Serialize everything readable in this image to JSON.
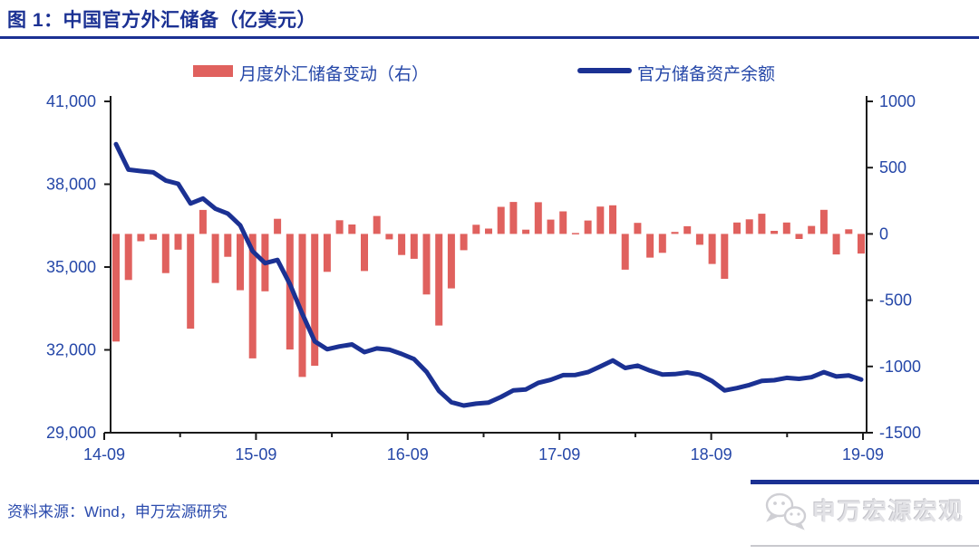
{
  "header": {
    "title": "图 1：中国官方外汇储备（亿美元）"
  },
  "legend": {
    "bars_label": "月度外汇储备变动（右）",
    "line_label": "官方储备资产余额"
  },
  "footer": {
    "source": "资料来源：Wind，申万宏源研究",
    "logo_text": "申万宏源宏观"
  },
  "colors": {
    "bar": "#E0615E",
    "line": "#1B3193",
    "title": "#1B3193",
    "axis_label": "#2547A8",
    "axis_line": "#1A1A1A"
  },
  "chart_data": {
    "type": "bar+line combo, monthly",
    "title": "中国官方外汇储备（亿美元）",
    "unit": "亿美元",
    "months": [
      "14-09",
      "14-10",
      "14-11",
      "14-12",
      "15-01",
      "15-02",
      "15-03",
      "15-04",
      "15-05",
      "15-06",
      "15-07",
      "15-08",
      "15-09",
      "15-10",
      "15-11",
      "15-12",
      "16-01",
      "16-02",
      "16-03",
      "16-04",
      "16-05",
      "16-06",
      "16-07",
      "16-08",
      "16-09",
      "16-10",
      "16-11",
      "16-12",
      "17-01",
      "17-02",
      "17-03",
      "17-04",
      "17-05",
      "17-06",
      "17-07",
      "17-08",
      "17-09",
      "17-10",
      "17-11",
      "17-12",
      "18-01",
      "18-02",
      "18-03",
      "18-04",
      "18-05",
      "18-06",
      "18-07",
      "18-08",
      "18-09",
      "18-10",
      "18-11",
      "18-12",
      "19-01",
      "19-02",
      "19-03",
      "19-04",
      "19-05",
      "19-06",
      "19-07",
      "19-08",
      "19-09"
    ],
    "series": [
      {
        "name": "月度外汇储备变动（右）",
        "type": "bar",
        "axis": "right",
        "values": [
          -812,
          -348,
          -55,
          -44,
          -296,
          -119,
          -715,
          181,
          -370,
          -173,
          -425,
          -939,
          -433,
          114,
          -872,
          -1079,
          -995,
          -286,
          103,
          71,
          -280,
          135,
          -41,
          -159,
          -188,
          -457,
          -691,
          -411,
          -123,
          69,
          40,
          204,
          241,
          32,
          239,
          108,
          170,
          7,
          101,
          206,
          216,
          -270,
          83,
          -179,
          -143,
          15,
          58,
          -82,
          -227,
          -339,
          86,
          110,
          152,
          23,
          86,
          -38,
          60,
          182,
          -155,
          35,
          -148
        ]
      },
      {
        "name": "官方储备资产余额",
        "type": "line",
        "axis": "left",
        "values": [
          39450,
          38529,
          38474,
          38430,
          38134,
          38015,
          37300,
          37481,
          37111,
          36938,
          36513,
          35574,
          35141,
          35255,
          34383,
          33304,
          32309,
          32023,
          32126,
          32197,
          31917,
          32052,
          32011,
          31852,
          31664,
          31207,
          30516,
          30105,
          29982,
          30051,
          30091,
          30295,
          30536,
          30568,
          30807,
          30915,
          31085,
          31092,
          31193,
          31399,
          31615,
          31345,
          31428,
          31249,
          31106,
          31121,
          31179,
          31097,
          30870,
          30531,
          30617,
          30727,
          30879,
          30902,
          30988,
          30950,
          31010,
          31192,
          31037,
          31072,
          30924
        ]
      }
    ],
    "left_axis": {
      "min": 29000,
      "max": 41000,
      "tick_step": 3000,
      "tick_labels": [
        "41,000",
        "38,000",
        "35,000",
        "32,000",
        "29,000"
      ]
    },
    "right_axis": {
      "min": -1500,
      "max": 1000,
      "tick_step": 500,
      "tick_labels": [
        "1000",
        "500",
        "0",
        "-500",
        "-1000",
        "-1500"
      ]
    },
    "x_axis": {
      "tick_labels": [
        "14-09",
        "15-09",
        "16-09",
        "17-09",
        "18-09",
        "19-09"
      ],
      "minor_ticks_every_months": 6
    },
    "grid": "off",
    "legend_position": "top-center"
  }
}
